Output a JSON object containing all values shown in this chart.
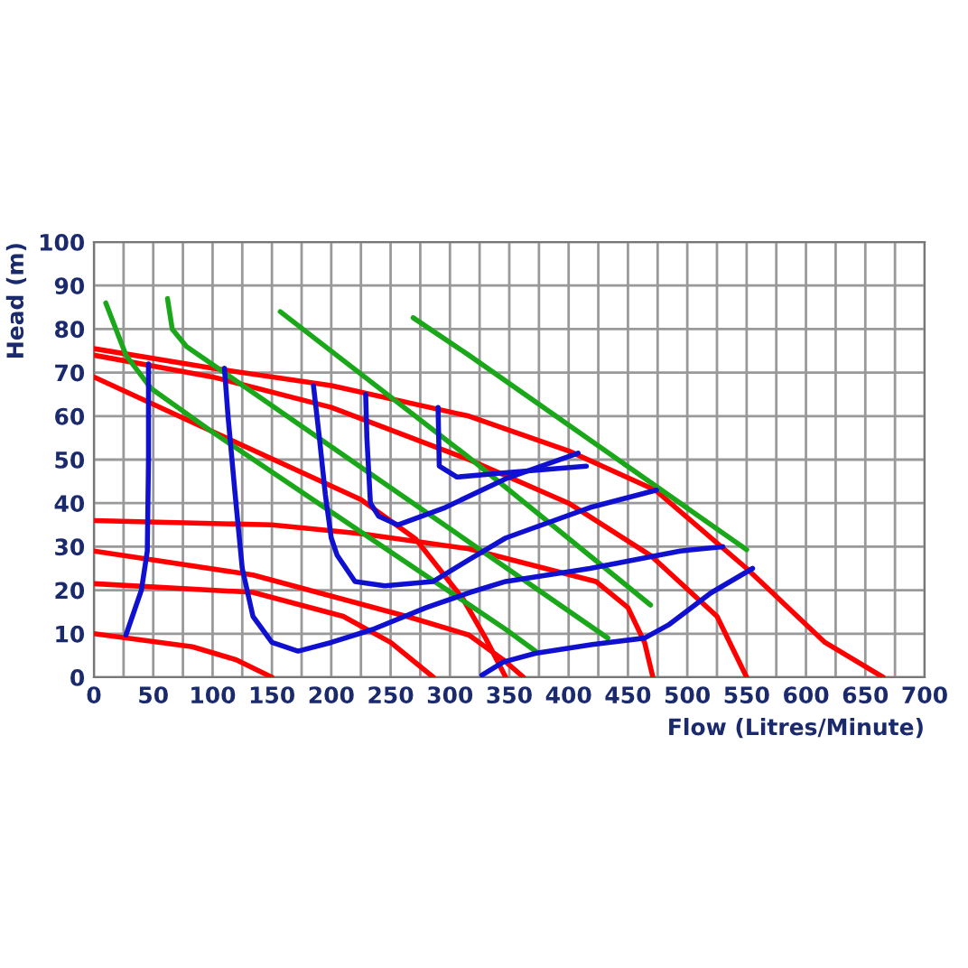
{
  "chart_data": {
    "type": "line",
    "xlabel": "Flow (Litres/Minute)",
    "ylabel": "Head (m)",
    "xlim": [
      0,
      700
    ],
    "ylim": [
      0,
      100
    ],
    "xticks": [
      0,
      {
        "value": 25,
        "label": null
      },
      50,
      {
        "value": 75,
        "label": null
      },
      100,
      {
        "value": 125,
        "label": null
      },
      150,
      {
        "value": 175,
        "label": null
      },
      200,
      {
        "value": 225,
        "label": null
      },
      250,
      {
        "value": 275,
        "label": null
      },
      300,
      {
        "value": 325,
        "label": null
      },
      350,
      {
        "value": 375,
        "label": null
      },
      400,
      {
        "value": 425,
        "label": null
      },
      450,
      {
        "value": 475,
        "label": null
      },
      500,
      {
        "value": 525,
        "label": null
      },
      550,
      {
        "value": 575,
        "label": null
      },
      600,
      {
        "value": 625,
        "label": null
      },
      650,
      {
        "value": 675,
        "label": null
      },
      700
    ],
    "yticks": [
      0,
      10,
      20,
      30,
      40,
      50,
      60,
      70,
      80,
      90,
      100
    ],
    "grid": true,
    "line_style": "solid",
    "series": [
      {
        "color": "#ff0000",
        "x": [
          0,
          100,
          200,
          316,
          400,
          473,
          550,
          616,
          665
        ],
        "values": [
          75.5,
          71,
          67,
          60,
          52,
          43,
          25,
          8,
          0
        ]
      },
      {
        "color": "#ff0000",
        "x": [
          0,
          100,
          200,
          316,
          400,
          469,
          525,
          550
        ],
        "values": [
          74,
          69,
          62,
          50,
          40,
          28,
          14,
          0
        ]
      },
      {
        "color": "#ff0000",
        "x": [
          0,
          98,
          225,
          271,
          311,
          330,
          347
        ],
        "values": [
          69,
          56.7,
          40.8,
          31.8,
          18,
          9,
          0
        ]
      },
      {
        "color": "#ff0000",
        "x": [
          0,
          150,
          225,
          316,
          423,
          450,
          464,
          471
        ],
        "values": [
          36,
          35,
          33,
          29.5,
          22,
          16,
          8,
          0
        ]
      },
      {
        "color": "#ff0000",
        "x": [
          0,
          134,
          266,
          316,
          345,
          362
        ],
        "values": [
          29,
          23.5,
          13.8,
          9.7,
          4,
          0
        ]
      },
      {
        "color": "#ff0000",
        "x": [
          0,
          134,
          210,
          250,
          286
        ],
        "values": [
          21.5,
          19.5,
          14,
          8,
          0
        ]
      },
      {
        "color": "#ff0000",
        "x": [
          0,
          83,
          120,
          150
        ],
        "values": [
          10,
          7,
          4,
          0
        ]
      },
      {
        "color": "#1aa81a",
        "x": [
          10,
          27,
          48,
          98,
          347,
          372
        ],
        "values": [
          86,
          74,
          66.4,
          56.7,
          11,
          6
        ]
      },
      {
        "color": "#1aa81a",
        "x": [
          62,
          66,
          78,
          433
        ],
        "values": [
          87,
          80,
          76,
          9
        ]
      },
      {
        "color": "#1aa81a",
        "x": [
          157,
          316,
          469
        ],
        "values": [
          84,
          50.5,
          16.6
        ]
      },
      {
        "color": "#1aa81a",
        "x": [
          269,
          316,
          550
        ],
        "values": [
          82.6,
          74,
          29.3
        ]
      },
      {
        "color": "#1010d0",
        "x": [
          46,
          46,
          45,
          40,
          27
        ],
        "values": [
          72,
          50,
          29,
          20,
          9.7
        ]
      },
      {
        "color": "#1010d0",
        "x": [
          110,
          113,
          119,
          125,
          134,
          150,
          172,
          200,
          235,
          280,
          317,
          347,
          418,
          494,
          530
        ],
        "values": [
          71,
          60,
          42,
          25,
          14,
          8,
          6,
          8,
          11,
          16,
          19.5,
          22,
          25,
          29,
          30
        ]
      },
      {
        "color": "#1010d0",
        "x": [
          185,
          190,
          195,
          200,
          205,
          220,
          245,
          286,
          316,
          347,
          418,
          474
        ],
        "values": [
          67,
          55,
          42,
          32,
          28,
          22,
          21,
          22,
          27,
          32,
          39,
          43
        ]
      },
      {
        "color": "#1010d0",
        "x": [
          229,
          230,
          233,
          240,
          256,
          296,
          347,
          408
        ],
        "values": [
          65,
          55,
          40,
          37,
          35,
          39,
          45.6,
          51.5
        ]
      },
      {
        "color": "#1010d0",
        "x": [
          290,
          291,
          306,
          347,
          415
        ],
        "values": [
          62,
          48.5,
          46,
          47,
          48.5
        ]
      },
      {
        "color": "#1010d0",
        "x": [
          327,
          345,
          372,
          420,
          464,
          484,
          520,
          555
        ],
        "values": [
          0.5,
          3.5,
          5.5,
          7.5,
          9,
          12,
          19.4,
          25
        ]
      }
    ]
  }
}
